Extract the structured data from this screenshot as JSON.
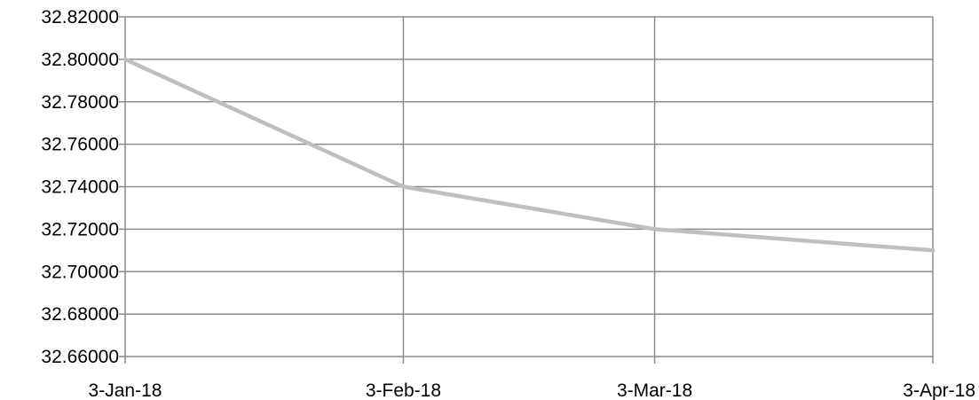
{
  "chart_data": {
    "type": "line",
    "title": "",
    "xlabel": "",
    "ylabel": "",
    "x": [
      "3-Jan-18",
      "3-Feb-18",
      "3-Mar-18",
      "3-Apr-18"
    ],
    "x_dates": [
      "2018-01-03",
      "2018-02-03",
      "2018-03-03",
      "2018-04-03"
    ],
    "series": [
      {
        "values": [
          32.8,
          32.74,
          32.72,
          32.71
        ],
        "color": "#bfbfbf"
      }
    ],
    "ylim": [
      32.66,
      32.82
    ],
    "y_ticks": [
      "32.66000",
      "32.68000",
      "32.70000",
      "32.72000",
      "32.74000",
      "32.76000",
      "32.78000",
      "32.80000",
      "32.82000"
    ],
    "grid": {
      "horizontal": true,
      "vertical": true,
      "color": "#8c8c8c"
    },
    "legend": "none"
  }
}
